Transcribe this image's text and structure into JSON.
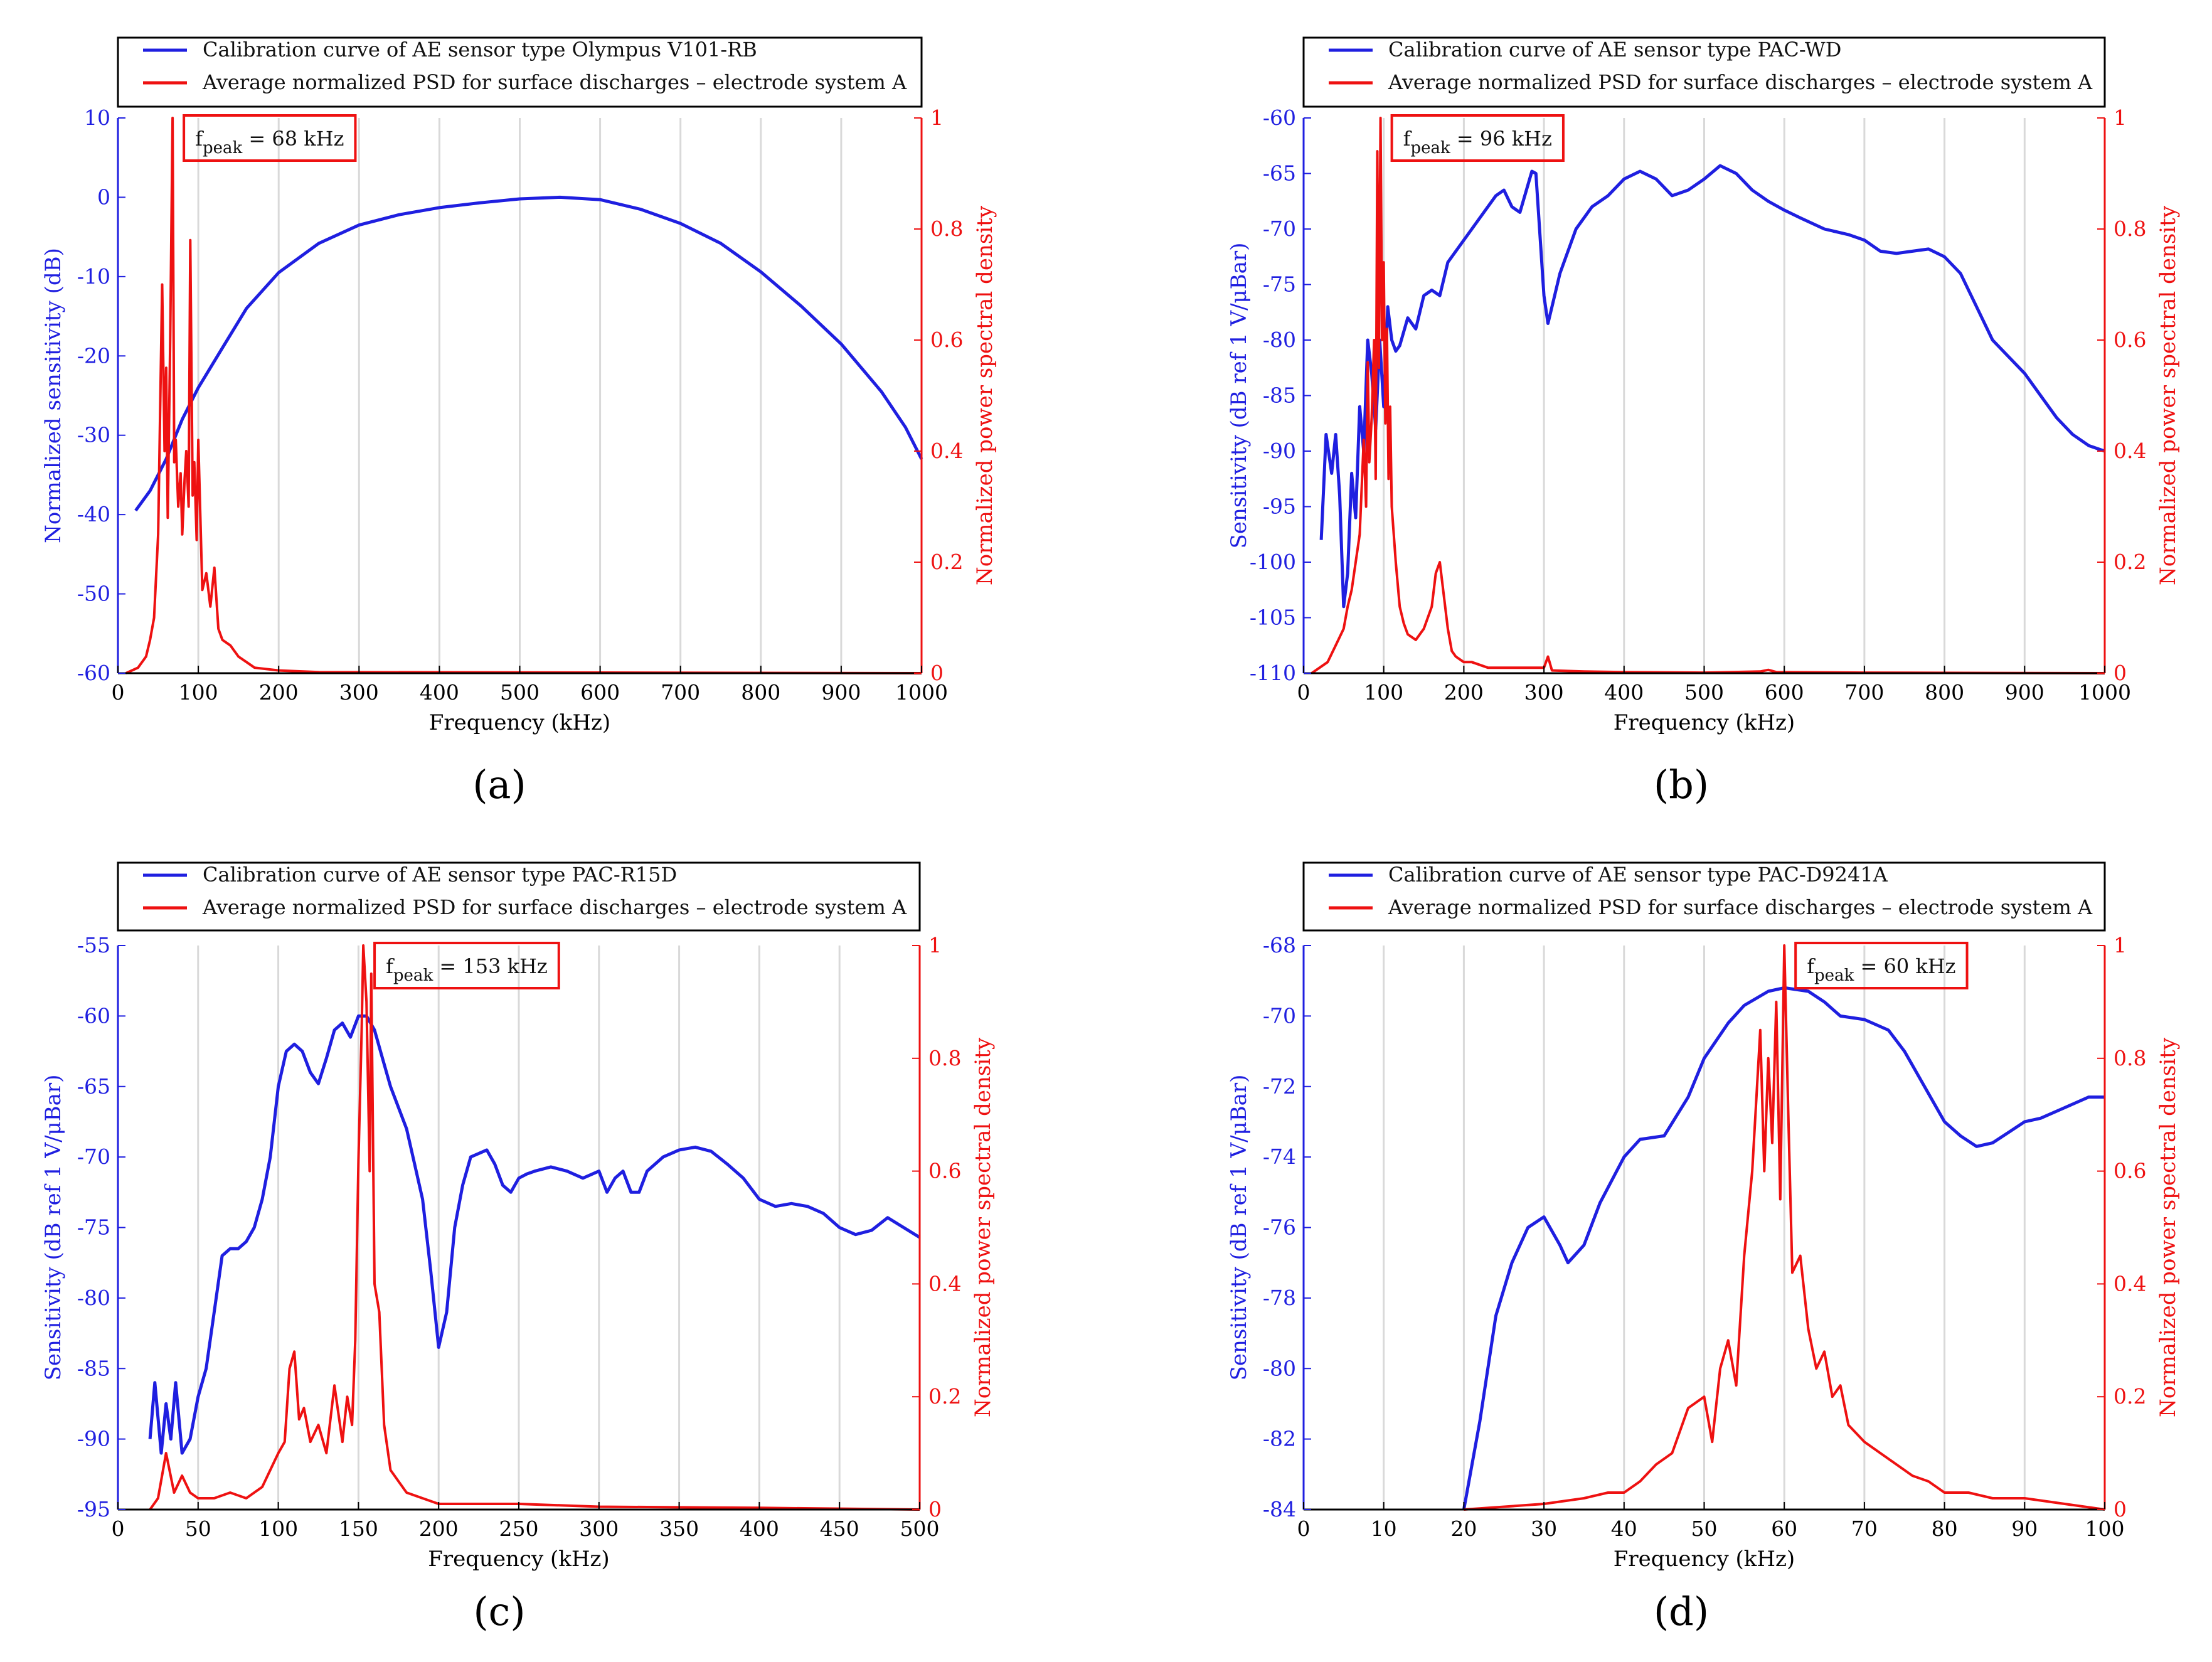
{
  "figure": {
    "colors": {
      "sensor": "#1f1fe0",
      "psd": "#ee1111",
      "grid": "#d9d9d9",
      "axis": "#000000"
    }
  },
  "chart_data": [
    {
      "type": "line",
      "caption": "(a)",
      "xlabel": "Frequency (kHz)",
      "ylabel": "Normalized sensitivity (dB)",
      "y2label": "Normalized power spectral density",
      "xlim": [
        0,
        1000
      ],
      "xticks": [
        0,
        100,
        200,
        300,
        400,
        500,
        600,
        700,
        800,
        900,
        1000
      ],
      "ylim": [
        -60,
        10
      ],
      "yticks": [
        -60,
        -50,
        -40,
        -30,
        -20,
        -10,
        0,
        10
      ],
      "y2lim": [
        0,
        1
      ],
      "y2ticks": [
        0,
        0.2,
        0.4,
        0.6,
        0.8,
        1
      ],
      "legend": [
        "Calibration curve of AE sensor type Olympus V101-RB",
        "Average normalized PSD for surface discharges – electrode system A"
      ],
      "annotation": {
        "f": "f",
        "sub": "peak",
        "value": " = 68 kHz",
        "x_at": 68
      },
      "series": [
        {
          "name": "Calibration curve of AE sensor type Olympus V101-RB",
          "axis": "left",
          "x": [
            22,
            40,
            60,
            80,
            100,
            130,
            160,
            200,
            250,
            300,
            350,
            400,
            450,
            500,
            550,
            600,
            650,
            700,
            750,
            800,
            850,
            900,
            950,
            980,
            1000
          ],
          "y": [
            -39.5,
            -37,
            -33,
            -28,
            -24,
            -19,
            -14,
            -9.5,
            -5.8,
            -3.5,
            -2.2,
            -1.3,
            -0.7,
            -0.2,
            0,
            -0.3,
            -1.5,
            -3.3,
            -5.8,
            -9.4,
            -13.7,
            -18.5,
            -24.5,
            -29,
            -33
          ]
        },
        {
          "name": "Average normalized PSD for surface discharges – electrode system A",
          "axis": "right",
          "x": [
            10,
            25,
            35,
            40,
            45,
            50,
            55,
            58,
            60,
            62,
            65,
            68,
            70,
            72,
            75,
            78,
            80,
            83,
            85,
            88,
            90,
            93,
            95,
            98,
            100,
            105,
            110,
            115,
            120,
            125,
            130,
            140,
            150,
            160,
            170,
            200,
            250,
            1000
          ],
          "y": [
            0,
            0.01,
            0.03,
            0.06,
            0.1,
            0.25,
            0.7,
            0.4,
            0.55,
            0.28,
            0.6,
            1.0,
            0.38,
            0.42,
            0.3,
            0.36,
            0.25,
            0.35,
            0.4,
            0.3,
            0.78,
            0.32,
            0.38,
            0.24,
            0.42,
            0.15,
            0.18,
            0.12,
            0.19,
            0.08,
            0.06,
            0.05,
            0.03,
            0.02,
            0.01,
            0.005,
            0.002,
            0
          ]
        }
      ]
    },
    {
      "type": "line",
      "caption": "(b)",
      "xlabel": "Frequency (kHz)",
      "ylabel": "Sensitivity (dB ref 1 V/μBar)",
      "y2label": "Normalized power spectral density",
      "xlim": [
        0,
        1000
      ],
      "xticks": [
        0,
        100,
        200,
        300,
        400,
        500,
        600,
        700,
        800,
        900,
        1000
      ],
      "ylim": [
        -110,
        -60
      ],
      "yticks": [
        -110,
        -105,
        -100,
        -95,
        -90,
        -85,
        -80,
        -75,
        -70,
        -65,
        -60
      ],
      "y2lim": [
        0,
        1
      ],
      "y2ticks": [
        0,
        0.2,
        0.4,
        0.6,
        0.8,
        1
      ],
      "legend": [
        "Calibration curve of AE sensor type PAC-WD",
        "Average normalized PSD for surface discharges – electrode system A"
      ],
      "annotation": {
        "f": "f",
        "sub": "peak",
        "value": " = 96 kHz",
        "x_at": 96
      },
      "series": [
        {
          "name": "Calibration curve of AE sensor type PAC-WD",
          "axis": "left",
          "x": [
            22,
            28,
            35,
            40,
            45,
            50,
            55,
            60,
            65,
            70,
            75,
            80,
            85,
            90,
            95,
            100,
            105,
            110,
            115,
            120,
            130,
            140,
            150,
            160,
            170,
            180,
            190,
            200,
            220,
            240,
            250,
            260,
            270,
            285,
            290,
            300,
            305,
            310,
            320,
            340,
            360,
            380,
            400,
            420,
            440,
            460,
            480,
            500,
            520,
            540,
            560,
            580,
            600,
            620,
            650,
            680,
            700,
            720,
            740,
            760,
            780,
            800,
            820,
            840,
            860,
            880,
            900,
            920,
            940,
            960,
            980,
            1000
          ],
          "y": [
            -98,
            -88.5,
            -92,
            -88.5,
            -94,
            -104,
            -101,
            -92,
            -96,
            -86,
            -90,
            -80,
            -83,
            -88,
            -80,
            -86,
            -77,
            -80,
            -81,
            -80.5,
            -78,
            -79,
            -76,
            -75.5,
            -76,
            -73,
            -72,
            -71,
            -69,
            -67,
            -66.5,
            -68,
            -68.5,
            -64.8,
            -65,
            -76,
            -78.5,
            -77,
            -74,
            -70,
            -68,
            -67,
            -65.5,
            -64.8,
            -65.5,
            -67,
            -66.5,
            -65.5,
            -64.3,
            -65,
            -66.5,
            -67.5,
            -68.3,
            -69,
            -70,
            -70.5,
            -71,
            -72,
            -72.2,
            -72,
            -71.8,
            -72.5,
            -74,
            -77,
            -80,
            -81.5,
            -83,
            -85,
            -87,
            -88.5,
            -89.5,
            -90
          ]
        },
        {
          "name": "Average normalized PSD for surface discharges – electrode system A",
          "axis": "right",
          "x": [
            10,
            30,
            40,
            50,
            55,
            60,
            65,
            70,
            75,
            78,
            80,
            82,
            85,
            88,
            90,
            92,
            94,
            96,
            98,
            100,
            102,
            104,
            106,
            108,
            110,
            115,
            120,
            125,
            130,
            140,
            150,
            160,
            165,
            170,
            175,
            180,
            185,
            190,
            200,
            210,
            230,
            250,
            280,
            300,
            305,
            310,
            350,
            400,
            500,
            570,
            580,
            590,
            700,
            1000
          ],
          "y": [
            0,
            0.02,
            0.05,
            0.08,
            0.12,
            0.15,
            0.2,
            0.25,
            0.42,
            0.3,
            0.56,
            0.38,
            0.46,
            0.6,
            0.35,
            0.94,
            0.55,
            1.0,
            0.6,
            0.74,
            0.45,
            0.62,
            0.35,
            0.48,
            0.3,
            0.2,
            0.12,
            0.09,
            0.07,
            0.06,
            0.08,
            0.12,
            0.18,
            0.2,
            0.14,
            0.08,
            0.04,
            0.03,
            0.02,
            0.02,
            0.01,
            0.01,
            0.01,
            0.01,
            0.03,
            0.005,
            0.003,
            0.002,
            0.001,
            0.003,
            0.006,
            0.002,
            0.001,
            0
          ]
        }
      ]
    },
    {
      "type": "line",
      "caption": "(c)",
      "xlabel": "Frequency (kHz)",
      "ylabel": "Sensitivity (dB ref 1 V/μBar)",
      "y2label": "Normalized power spectral density",
      "xlim": [
        0,
        500
      ],
      "xticks": [
        0,
        50,
        100,
        150,
        200,
        250,
        300,
        350,
        400,
        450,
        500
      ],
      "ylim": [
        -95,
        -55
      ],
      "yticks": [
        -95,
        -90,
        -85,
        -80,
        -75,
        -70,
        -65,
        -60,
        -55
      ],
      "y2lim": [
        0,
        1
      ],
      "y2ticks": [
        0,
        0.2,
        0.4,
        0.6,
        0.8,
        1
      ],
      "legend": [
        "Calibration curve of AE sensor type PAC-R15D",
        "Average normalized PSD for surface discharges – electrode system A"
      ],
      "annotation": {
        "f": "f",
        "sub": "peak",
        "value": " = 153 kHz",
        "x_at": 153
      },
      "series": [
        {
          "name": "Calibration curve of AE sensor type PAC-R15D",
          "axis": "left",
          "x": [
            20,
            23,
            27,
            30,
            33,
            36,
            40,
            45,
            50,
            55,
            60,
            65,
            70,
            75,
            80,
            85,
            90,
            95,
            100,
            105,
            110,
            115,
            120,
            125,
            130,
            135,
            140,
            145,
            150,
            155,
            160,
            165,
            170,
            175,
            180,
            185,
            190,
            195,
            200,
            205,
            210,
            215,
            220,
            230,
            235,
            240,
            245,
            250,
            255,
            260,
            270,
            280,
            290,
            300,
            305,
            310,
            315,
            320,
            325,
            330,
            340,
            350,
            360,
            370,
            380,
            390,
            400,
            410,
            420,
            430,
            440,
            450,
            460,
            470,
            480,
            490,
            500
          ],
          "y": [
            -90,
            -86,
            -91,
            -87.5,
            -90,
            -86,
            -91,
            -90,
            -87,
            -85,
            -81,
            -77,
            -76.5,
            -76.5,
            -76,
            -75,
            -73,
            -70,
            -65,
            -62.5,
            -62,
            -62.5,
            -64,
            -64.8,
            -63,
            -61,
            -60.5,
            -61.5,
            -60,
            -60,
            -61,
            -63,
            -65,
            -66.5,
            -68,
            -70.5,
            -73,
            -78,
            -83.5,
            -81,
            -75,
            -72,
            -70,
            -69.5,
            -70.5,
            -72,
            -72.5,
            -71.5,
            -71.2,
            -71,
            -70.7,
            -71,
            -71.5,
            -71,
            -72.5,
            -71.5,
            -71,
            -72.5,
            -72.5,
            -71,
            -70,
            -69.5,
            -69.3,
            -69.6,
            -70.5,
            -71.5,
            -73,
            -73.5,
            -73.3,
            -73.5,
            -74,
            -75,
            -75.5,
            -75.2,
            -74.3,
            -75,
            -75.7
          ]
        },
        {
          "name": "Average normalized PSD for surface discharges – electrode system A",
          "axis": "right",
          "x": [
            20,
            25,
            30,
            35,
            40,
            45,
            50,
            60,
            70,
            80,
            90,
            100,
            104,
            107,
            110,
            113,
            116,
            120,
            125,
            130,
            135,
            140,
            143,
            146,
            148,
            150,
            152,
            153,
            155,
            157,
            158,
            160,
            163,
            166,
            170,
            175,
            180,
            190,
            200,
            220,
            250,
            300,
            400,
            500
          ],
          "y": [
            0,
            0.02,
            0.1,
            0.03,
            0.06,
            0.03,
            0.02,
            0.02,
            0.03,
            0.02,
            0.04,
            0.1,
            0.12,
            0.25,
            0.28,
            0.16,
            0.18,
            0.12,
            0.15,
            0.1,
            0.22,
            0.12,
            0.2,
            0.15,
            0.3,
            0.62,
            0.85,
            1.0,
            0.9,
            0.6,
            0.95,
            0.4,
            0.35,
            0.15,
            0.07,
            0.05,
            0.03,
            0.02,
            0.01,
            0.01,
            0.01,
            0.005,
            0.003,
            0
          ]
        }
      ]
    },
    {
      "type": "line",
      "caption": "(d)",
      "xlabel": "Frequency (kHz)",
      "ylabel": "Sensitivity (dB ref 1 V/μBar)",
      "y2label": "Normalized power spectral density",
      "xlim": [
        0,
        100
      ],
      "xticks": [
        0,
        10,
        20,
        30,
        40,
        50,
        60,
        70,
        80,
        90,
        100
      ],
      "ylim": [
        -84,
        -68
      ],
      "yticks": [
        -84,
        -82,
        -80,
        -78,
        -76,
        -74,
        -72,
        -70,
        -68
      ],
      "y2lim": [
        0,
        1
      ],
      "y2ticks": [
        0,
        0.2,
        0.4,
        0.6,
        0.8,
        1
      ],
      "legend": [
        "Calibration curve of AE sensor type PAC-D9241A",
        "Average normalized PSD for surface discharges – electrode system A"
      ],
      "annotation": {
        "f": "f",
        "sub": "peak",
        "value": " = 60 kHz",
        "x_at": 60
      },
      "series": [
        {
          "name": "Calibration curve of AE sensor type PAC-D9241A",
          "axis": "left",
          "x": [
            20,
            22,
            24,
            26,
            28,
            30,
            32,
            33,
            35,
            37,
            40,
            42,
            45,
            48,
            50,
            53,
            55,
            58,
            60,
            63,
            65,
            67,
            70,
            73,
            75,
            78,
            80,
            82,
            84,
            86,
            88,
            90,
            92,
            95,
            98,
            100
          ],
          "y": [
            -84,
            -81.5,
            -78.5,
            -77,
            -76,
            -75.7,
            -76.5,
            -77,
            -76.5,
            -75.3,
            -74,
            -73.5,
            -73.4,
            -72.3,
            -71.2,
            -70.2,
            -69.7,
            -69.3,
            -69.2,
            -69.3,
            -69.6,
            -70,
            -70.1,
            -70.4,
            -71,
            -72.2,
            -73,
            -73.4,
            -73.7,
            -73.6,
            -73.3,
            -73,
            -72.9,
            -72.6,
            -72.3,
            -72.3
          ]
        },
        {
          "name": "Average normalized PSD for surface discharges – electrode system A",
          "axis": "right",
          "x": [
            20,
            30,
            35,
            38,
            40,
            42,
            44,
            46,
            48,
            50,
            51,
            52,
            53,
            54,
            55,
            56,
            57,
            57.5,
            58,
            58.5,
            59,
            59.5,
            60,
            60.5,
            61,
            62,
            63,
            64,
            65,
            66,
            67,
            68,
            70,
            72,
            74,
            76,
            78,
            80,
            83,
            86,
            90,
            95,
            100
          ],
          "y": [
            0,
            0.01,
            0.02,
            0.03,
            0.03,
            0.05,
            0.08,
            0.1,
            0.18,
            0.2,
            0.12,
            0.25,
            0.3,
            0.22,
            0.45,
            0.6,
            0.85,
            0.6,
            0.8,
            0.65,
            0.9,
            0.55,
            1.0,
            0.7,
            0.42,
            0.45,
            0.32,
            0.25,
            0.28,
            0.2,
            0.22,
            0.15,
            0.12,
            0.1,
            0.08,
            0.06,
            0.05,
            0.03,
            0.03,
            0.02,
            0.02,
            0.01,
            0
          ]
        }
      ]
    }
  ]
}
